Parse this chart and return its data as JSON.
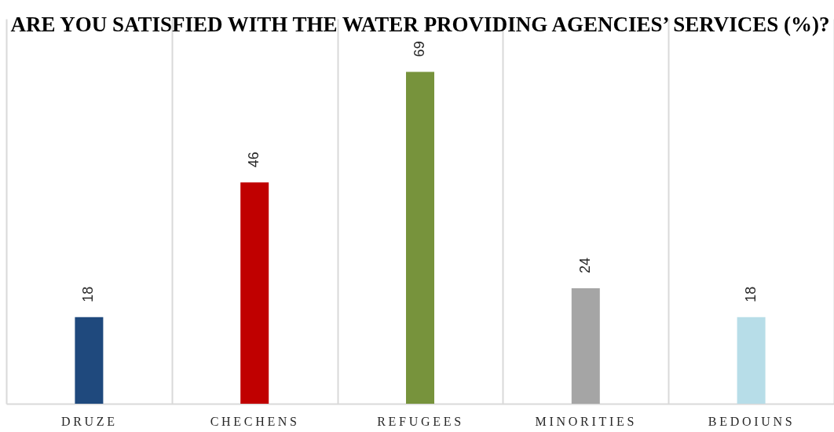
{
  "chart_data": {
    "type": "bar",
    "title": "ARE YOU SATISFIED WITH THE WATER PROVIDING AGENCIES’ SERVICES (%)?",
    "categories": [
      "DRUZE",
      "CHECHENS",
      "REFUGEES",
      "MINORITIES",
      "BEDOIUNS"
    ],
    "values": [
      18,
      46,
      69,
      24,
      18
    ],
    "colors": [
      "#1f497d",
      "#c00000",
      "#77933c",
      "#a5a5a5",
      "#b7dde8"
    ],
    "ylim": [
      0,
      80
    ],
    "data_labels": true,
    "grid": "x",
    "tick_labels": "x"
  }
}
